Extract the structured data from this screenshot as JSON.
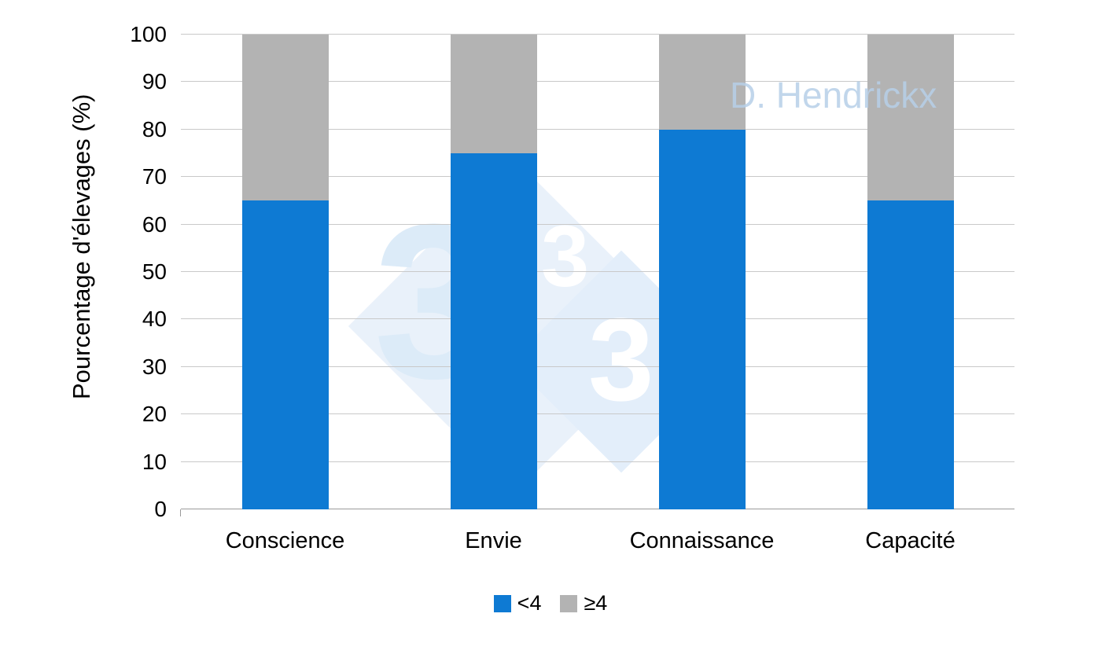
{
  "chart_data": {
    "type": "bar",
    "variant": "stacked-column",
    "title": "",
    "ylabel": "Pourcentage d'élevages (%)",
    "xlabel": "",
    "categories": [
      "Conscience",
      "Envie",
      "Connaissance",
      "Capacité"
    ],
    "series": [
      {
        "name": "<4",
        "color": "#0e7ad3",
        "values": [
          65,
          75,
          80,
          65
        ]
      },
      {
        "name": "≥4",
        "color": "#b3b3b3",
        "values": [
          35,
          25,
          20,
          35
        ]
      }
    ],
    "ylim": [
      0,
      100
    ],
    "yticks": [
      0,
      10,
      20,
      30,
      40,
      50,
      60,
      70,
      80,
      90,
      100
    ],
    "grid": true,
    "legend_position": "bottom"
  },
  "watermarks": {
    "author": "D. Hendrickx",
    "logo_digits": [
      "3",
      "3",
      "3"
    ]
  }
}
